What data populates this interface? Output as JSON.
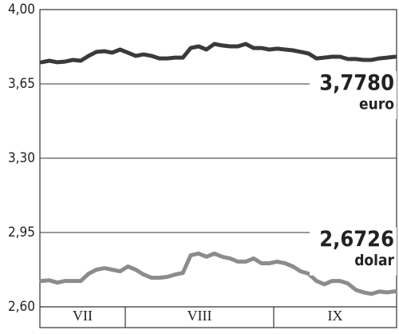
{
  "chart_data": {
    "type": "line",
    "ylim": [
      2.6,
      4.0
    ],
    "yticks": [
      {
        "value": 2.6,
        "label": "2,60"
      },
      {
        "value": 2.95,
        "label": "2,95"
      },
      {
        "value": 3.3,
        "label": "3,30"
      },
      {
        "value": 3.65,
        "label": "3,65"
      },
      {
        "value": 4.0,
        "label": "4,00"
      }
    ],
    "months": [
      "VII",
      "VIII",
      "IX"
    ],
    "grid": true,
    "series": [
      {
        "name": "euro",
        "color": "#3a3a3a",
        "values": [
          3.752,
          3.759,
          3.752,
          3.755,
          3.763,
          3.759,
          3.782,
          3.801,
          3.804,
          3.797,
          3.812,
          3.797,
          3.782,
          3.789,
          3.782,
          3.77,
          3.77,
          3.774,
          3.774,
          3.819,
          3.827,
          3.812,
          3.838,
          3.831,
          3.827,
          3.827,
          3.838,
          3.819,
          3.819,
          3.812,
          3.816,
          3.812,
          3.808,
          3.801,
          3.793,
          3.77,
          3.774,
          3.778,
          3.778,
          3.767,
          3.767,
          3.763,
          3.763,
          3.77,
          3.774,
          3.778
        ],
        "value_labels": [
          null,
          null,
          null,
          null,
          null,
          null,
          null,
          null,
          null,
          null,
          null,
          null,
          null,
          null,
          null,
          null,
          null,
          null,
          null,
          null,
          null,
          null,
          null,
          null,
          null,
          null,
          null,
          null,
          null,
          null,
          null,
          null,
          null,
          null,
          null,
          null,
          null,
          null,
          null,
          null,
          null,
          null,
          null,
          null,
          null,
          "3,7780"
        ]
      },
      {
        "name": "dolar",
        "color": "#8c8c8c",
        "values": [
          2.722,
          2.725,
          2.714,
          2.722,
          2.722,
          2.722,
          2.756,
          2.775,
          2.782,
          2.775,
          2.767,
          2.79,
          2.775,
          2.752,
          2.737,
          2.737,
          2.741,
          2.752,
          2.76,
          2.843,
          2.851,
          2.836,
          2.851,
          2.836,
          2.828,
          2.813,
          2.813,
          2.828,
          2.805,
          2.805,
          2.813,
          2.805,
          2.79,
          2.767,
          2.756,
          2.722,
          2.706,
          2.722,
          2.722,
          2.71,
          2.68,
          2.668,
          2.661,
          2.672,
          2.668,
          2.673
        ],
        "value_labels": [
          null,
          null,
          null,
          null,
          null,
          null,
          null,
          null,
          null,
          null,
          null,
          null,
          null,
          null,
          null,
          null,
          null,
          null,
          null,
          null,
          null,
          null,
          null,
          null,
          null,
          null,
          null,
          null,
          null,
          null,
          null,
          null,
          null,
          null,
          null,
          null,
          null,
          null,
          null,
          null,
          null,
          null,
          null,
          null,
          null,
          "2,6726"
        ]
      }
    ]
  }
}
